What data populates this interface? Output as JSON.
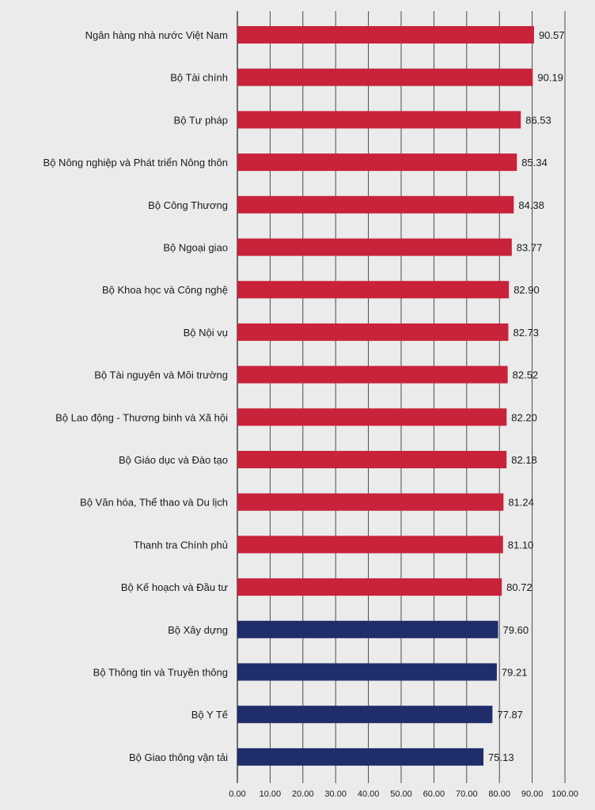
{
  "chart_data": {
    "type": "bar",
    "orientation": "horizontal",
    "title": "",
    "xlabel": "",
    "ylabel": "",
    "xlim": [
      0,
      100
    ],
    "grid": true,
    "categories": [
      "Ngân hàng nhà nước Việt Nam",
      "Bộ Tài chính",
      "Bộ Tư pháp",
      "Bộ Nông nghiệp và Phát triển Nông thôn",
      "Bộ Công Thương",
      "Bộ Ngoại giao",
      "Bộ Khoa học và Công nghệ",
      "Bộ Nội vụ",
      "Bộ Tài nguyên và Môi trường",
      "Bộ Lao động - Thương binh và Xã hội",
      "Bộ Giáo dục và Đào tạo",
      "Bộ Văn hóa, Thể thao và Du lịch",
      "Thanh tra Chính phủ",
      "Bộ Kế hoạch và Đầu tư",
      "Bộ Xây dựng",
      "Bộ Thông tin và Truyền thông",
      "Bộ Y Tế",
      "Bộ Giao thông vận tải"
    ],
    "values": [
      90.57,
      90.19,
      86.53,
      85.34,
      84.38,
      83.77,
      82.9,
      82.73,
      82.52,
      82.2,
      82.18,
      81.24,
      81.1,
      80.72,
      79.6,
      79.21,
      77.87,
      75.13
    ],
    "value_labels": [
      "90.57",
      "90.19",
      "86.53",
      "85.34",
      "84.38",
      "83.77",
      "82.90",
      "82.73",
      "82.52",
      "82.20",
      "82.18",
      "81.24",
      "81.10",
      "80.72",
      "79.60",
      "79.21",
      "77.87",
      "75.13"
    ],
    "bar_colors": [
      "#c8233a",
      "#c8233a",
      "#c8233a",
      "#c8233a",
      "#c8233a",
      "#c8233a",
      "#c8233a",
      "#c8233a",
      "#c8233a",
      "#c8233a",
      "#c8233a",
      "#c8233a",
      "#c8233a",
      "#c8233a",
      "#1f2d6b",
      "#1f2d6b",
      "#1f2d6b",
      "#1f2d6b"
    ],
    "xticks": [
      "0.00",
      "10.00",
      "20.00",
      "30.00",
      "40.00",
      "50.00",
      "60.00",
      "70.00",
      "80.00",
      "90.00",
      "100.00"
    ],
    "colors": {
      "above_80": "#c8233a",
      "below_80": "#1f2d6b",
      "grid": "#3a3a3a",
      "background": "#ebebeb"
    }
  }
}
